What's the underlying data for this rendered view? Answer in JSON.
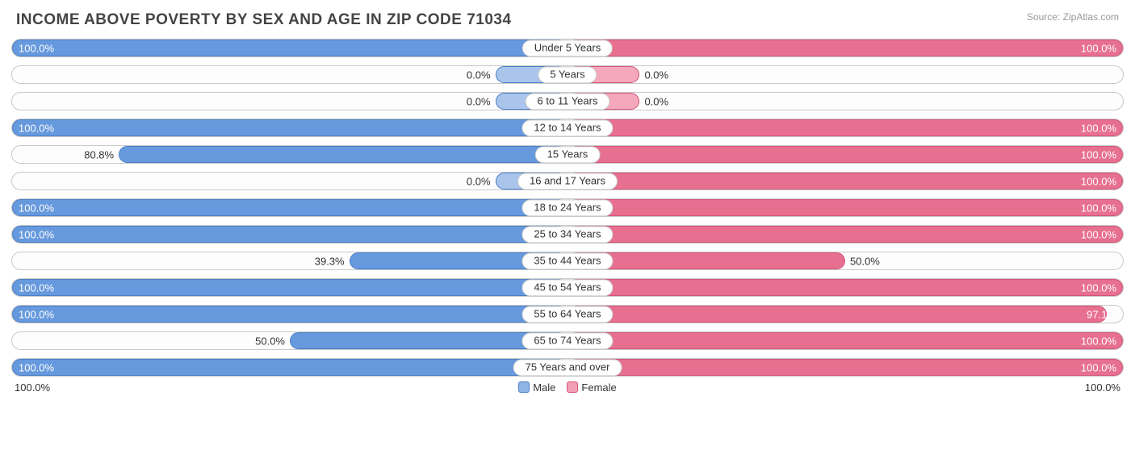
{
  "chart": {
    "type": "population-pyramid-bar",
    "title": "INCOME ABOVE POVERTY BY SEX AND AGE IN ZIP CODE 71034",
    "source": "Source: ZipAtlas.com",
    "male_color_fill": "#6699dd",
    "male_color_border": "#4a7fc7",
    "female_color_fill": "#e76f8f",
    "female_color_border": "#d4567a",
    "male_color_light": "#a9c5ec",
    "female_color_light": "#f5a8bc",
    "track_border": "#c9c9c9",
    "text_color": "#333333",
    "axis_left_label": "100.0%",
    "axis_right_label": "100.0%",
    "legend": [
      {
        "label": "Male",
        "fill": "#8fb3e5",
        "border": "#4a7fc7"
      },
      {
        "label": "Female",
        "fill": "#f2a0b5",
        "border": "#d4567a"
      }
    ],
    "xmax": 100,
    "min_bar_pct": 13,
    "categories": [
      {
        "label": "Under 5 Years",
        "male": 100.0,
        "female": 100.0
      },
      {
        "label": "5 Years",
        "male": 0.0,
        "female": 0.0
      },
      {
        "label": "6 to 11 Years",
        "male": 0.0,
        "female": 0.0
      },
      {
        "label": "12 to 14 Years",
        "male": 100.0,
        "female": 100.0
      },
      {
        "label": "15 Years",
        "male": 80.8,
        "female": 100.0
      },
      {
        "label": "16 and 17 Years",
        "male": 0.0,
        "female": 100.0
      },
      {
        "label": "18 to 24 Years",
        "male": 100.0,
        "female": 100.0
      },
      {
        "label": "25 to 34 Years",
        "male": 100.0,
        "female": 100.0
      },
      {
        "label": "35 to 44 Years",
        "male": 39.3,
        "female": 50.0
      },
      {
        "label": "45 to 54 Years",
        "male": 100.0,
        "female": 100.0
      },
      {
        "label": "55 to 64 Years",
        "male": 100.0,
        "female": 97.1
      },
      {
        "label": "65 to 74 Years",
        "male": 50.0,
        "female": 100.0
      },
      {
        "label": "75 Years and over",
        "male": 100.0,
        "female": 100.0
      }
    ]
  }
}
